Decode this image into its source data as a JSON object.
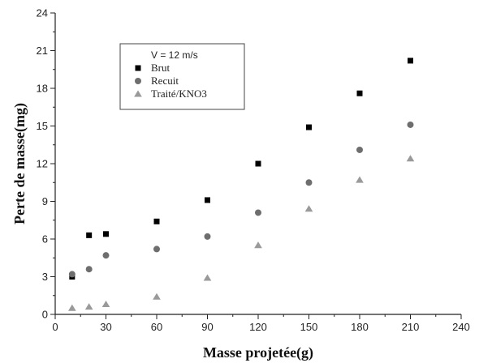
{
  "chart_data": {
    "type": "scatter",
    "title": "",
    "xlabel": "Masse projetée(g)",
    "ylabel": "Perte de masse(mg)",
    "xlim": [
      0,
      240
    ],
    "ylim": [
      0,
      24
    ],
    "xticks": [
      0,
      30,
      60,
      90,
      120,
      150,
      180,
      210,
      240
    ],
    "yticks": [
      0,
      3,
      6,
      9,
      12,
      15,
      18,
      21,
      24
    ],
    "grid": false,
    "legend": {
      "title": "V = 12 m/s",
      "placement": "top-left"
    },
    "series": [
      {
        "name": "Brut",
        "marker": "square",
        "color": "#000000",
        "points": [
          [
            10,
            3.0
          ],
          [
            20,
            6.3
          ],
          [
            30,
            6.4
          ],
          [
            60,
            7.4
          ],
          [
            90,
            9.1
          ],
          [
            120,
            12.0
          ],
          [
            150,
            14.9
          ],
          [
            180,
            17.6
          ],
          [
            210,
            20.2
          ]
        ]
      },
      {
        "name": "Recuit",
        "marker": "circle",
        "color": "#6e6e6e",
        "points": [
          [
            10,
            3.2
          ],
          [
            20,
            3.6
          ],
          [
            30,
            4.7
          ],
          [
            60,
            5.2
          ],
          [
            90,
            6.2
          ],
          [
            120,
            8.1
          ],
          [
            150,
            10.5
          ],
          [
            180,
            13.1
          ],
          [
            210,
            15.1
          ]
        ]
      },
      {
        "name": "Traité/KNO3",
        "marker": "triangle",
        "color": "#9a9a9a",
        "points": [
          [
            10,
            0.5
          ],
          [
            20,
            0.6
          ],
          [
            30,
            0.8
          ],
          [
            60,
            1.4
          ],
          [
            90,
            2.9
          ],
          [
            120,
            5.5
          ],
          [
            150,
            8.4
          ],
          [
            180,
            10.7
          ],
          [
            210,
            12.4
          ]
        ]
      }
    ]
  }
}
